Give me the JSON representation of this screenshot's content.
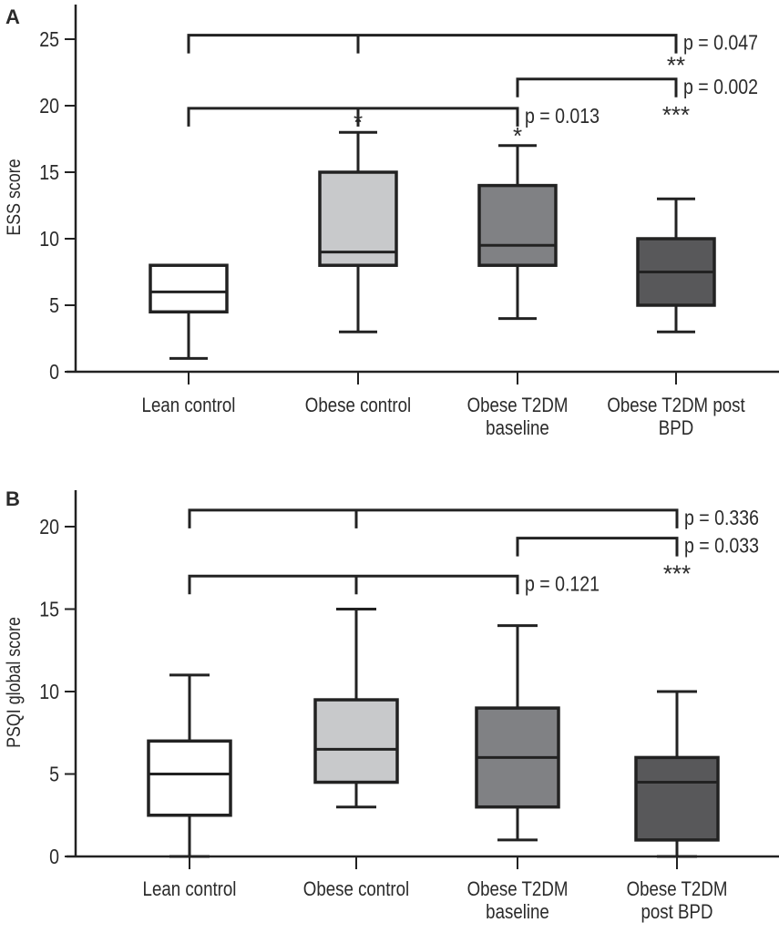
{
  "chart_data": [
    {
      "panel": "A",
      "type": "box",
      "ylabel": "ESS score",
      "ylim": [
        0,
        27
      ],
      "yticks": [
        0,
        5,
        10,
        15,
        20,
        25
      ],
      "categories": [
        "Lean control",
        "Obese control",
        "Obese T2DM baseline",
        "Obese T2DM post BPD"
      ],
      "category_lines": [
        [
          "Lean control"
        ],
        [
          "Obese control"
        ],
        [
          "Obese T2DM",
          "baseline"
        ],
        [
          "Obese T2DM post",
          "BPD"
        ]
      ],
      "fills": [
        "#ffffff",
        "#c8c9cb",
        "#808184",
        "#58585a"
      ],
      "boxes": [
        {
          "min": 1,
          "q1": 4.5,
          "median": 6,
          "q3": 8,
          "max": 8
        },
        {
          "min": 3,
          "q1": 8,
          "median": 9,
          "q3": 15,
          "max": 18
        },
        {
          "min": 4,
          "q1": 8,
          "median": 9.5,
          "q3": 14,
          "max": 17
        },
        {
          "min": 3,
          "q1": 5,
          "median": 7.5,
          "q3": 10,
          "max": 13
        }
      ],
      "brackets": [
        {
          "from": 0,
          "to": 3,
          "y": 25.3,
          "p": "p = 0.047"
        },
        {
          "from": 2,
          "to": 3,
          "y": 22,
          "p": "p = 0.002"
        },
        {
          "from": 0,
          "to": 2,
          "y": 19.8,
          "p": "p = 0.013"
        }
      ],
      "stars": [
        {
          "category": 1,
          "text": "*"
        },
        {
          "category": 2,
          "text": "*"
        },
        {
          "category": 3,
          "text": "**",
          "position": "below-top-bracket"
        },
        {
          "category": 3,
          "text": "***",
          "position": "below-second-bracket"
        }
      ]
    },
    {
      "panel": "B",
      "type": "box",
      "ylabel": "PSQI global score",
      "ylim": [
        0,
        22
      ],
      "yticks": [
        0,
        5,
        10,
        15,
        20
      ],
      "categories": [
        "Lean control",
        "Obese control",
        "Obese T2DM baseline",
        "Obese T2DM post BPD"
      ],
      "category_lines": [
        [
          "Lean control"
        ],
        [
          "Obese control"
        ],
        [
          "Obese T2DM",
          "baseline"
        ],
        [
          "Obese T2DM",
          "post BPD"
        ]
      ],
      "fills": [
        "#ffffff",
        "#c8c9cb",
        "#808184",
        "#58585a"
      ],
      "boxes": [
        {
          "min": 0,
          "q1": 2.5,
          "median": 5,
          "q3": 7,
          "max": 11
        },
        {
          "min": 3,
          "q1": 4.5,
          "median": 6.5,
          "q3": 9.5,
          "max": 15
        },
        {
          "min": 1,
          "q1": 3,
          "median": 6,
          "q3": 9,
          "max": 14
        },
        {
          "min": 0,
          "q1": 1,
          "median": 4.5,
          "q3": 6,
          "max": 10
        }
      ],
      "brackets": [
        {
          "from": 0,
          "to": 3,
          "y": 21,
          "p": "p = 0.336"
        },
        {
          "from": 2,
          "to": 3,
          "y": 19.3,
          "p": "p = 0.033"
        },
        {
          "from": 0,
          "to": 2,
          "y": 17,
          "p": "p = 0.121"
        }
      ],
      "stars": [
        {
          "category": 3,
          "text": "***",
          "position": "below-second-bracket"
        }
      ]
    }
  ]
}
